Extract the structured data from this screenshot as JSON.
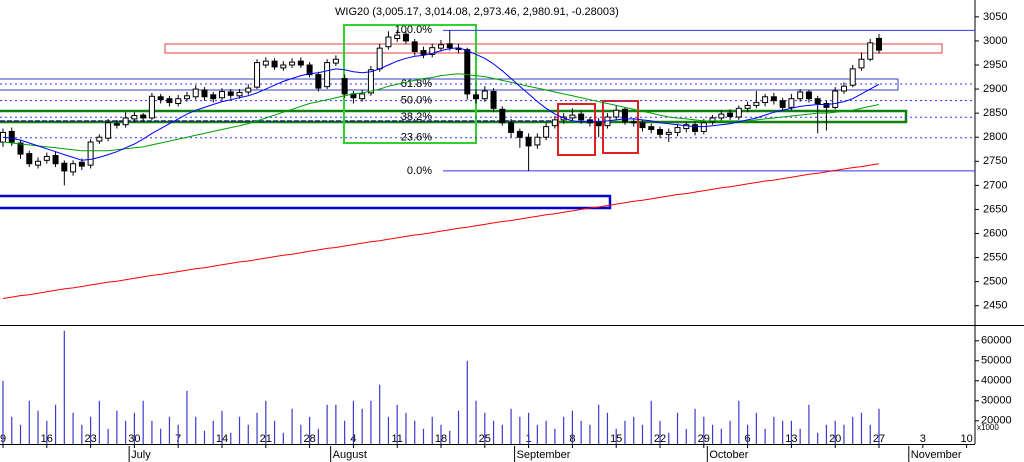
{
  "chart_data": {
    "type": "candlestick",
    "title": "WIG20 (3,005.17, 3,014.08, 2,973.46, 2,980.91, -0.28003)",
    "categories": [
      "9",
      null,
      null,
      null,
      null,
      "16",
      null,
      null,
      null,
      null,
      "23",
      null,
      null,
      null,
      null,
      "30",
      null,
      null,
      null,
      null,
      "7",
      null,
      null,
      null,
      null,
      "14",
      null,
      null,
      null,
      null,
      "21",
      null,
      null,
      null,
      null,
      "28",
      null,
      null,
      null,
      null,
      "4",
      null,
      null,
      null,
      null,
      "11",
      null,
      null,
      null,
      null,
      "18",
      null,
      null,
      null,
      null,
      "25",
      null,
      null,
      null,
      null,
      "1",
      null,
      null,
      null,
      null,
      "8",
      null,
      null,
      null,
      null,
      "15",
      null,
      null,
      null,
      null,
      "22",
      null,
      null,
      null,
      null,
      "29",
      null,
      null,
      null,
      null,
      "6",
      null,
      null,
      null,
      null,
      "13",
      null,
      null,
      null,
      null,
      "20",
      null,
      null,
      null,
      null,
      "27",
      null,
      null,
      null,
      null,
      "3",
      null,
      null,
      null,
      null,
      "10"
    ],
    "months": [
      null,
      null,
      null,
      null,
      null,
      null,
      null,
      null,
      null,
      null,
      null,
      null,
      null,
      null,
      null,
      null,
      "July",
      null,
      null,
      null,
      null,
      null,
      null,
      null,
      null,
      null,
      null,
      null,
      null,
      null,
      null,
      null,
      null,
      null,
      null,
      null,
      null,
      null,
      null,
      "August",
      null,
      null,
      null,
      null,
      null,
      null,
      null,
      null,
      null,
      null,
      null,
      null,
      null,
      null,
      null,
      null,
      null,
      null,
      null,
      null,
      "September",
      null,
      null,
      null,
      null,
      null,
      null,
      null,
      null,
      null,
      null,
      null,
      null,
      null,
      null,
      null,
      null,
      null,
      null,
      null,
      null,
      null,
      "October",
      null,
      null,
      null,
      null,
      null,
      null,
      null,
      null,
      null,
      null,
      null,
      null,
      null,
      null,
      null,
      null,
      null,
      null,
      null,
      null,
      null,
      null,
      "November",
      null,
      null,
      null,
      null,
      null
    ],
    "open": [
      2790,
      2812,
      2788,
      2766,
      2742,
      2752,
      2762,
      2746,
      2728,
      2748,
      2742,
      2792,
      2798,
      2828,
      2826,
      2838,
      2846,
      2840,
      2884,
      2880,
      2870,
      2880,
      2884,
      2898,
      2888,
      2882,
      2894,
      2886,
      2894,
      2904,
      2950,
      2958,
      2944,
      2950,
      2958,
      2950,
      2930,
      2905,
      2954,
      2922,
      2890,
      2880,
      2892,
      2942,
      2988,
      3005,
      3014,
      2998,
      2980,
      2972,
      2985,
      2994,
      2985,
      2982,
      2888,
      2880,
      2895,
      2858,
      2830,
      2812,
      2800,
      2784,
      2800,
      2824,
      2836,
      2840,
      2848,
      2836,
      2832,
      2824,
      2842,
      2858,
      2832,
      2830,
      2822,
      2816,
      2806,
      2810,
      2818,
      2826,
      2812,
      2832,
      2840,
      2850,
      2842,
      2860,
      2866,
      2872,
      2884,
      2876,
      2862,
      2880,
      2894,
      2880,
      2870,
      2862,
      2896,
      2908,
      2944,
      2962,
      3005.17,
      null,
      null,
      null,
      null,
      null,
      null,
      null,
      null,
      null,
      null
    ],
    "high": [
      2818,
      2820,
      2795,
      2772,
      2758,
      2768,
      2770,
      2752,
      2752,
      2756,
      2796,
      2806,
      2838,
      2836,
      2852,
      2852,
      2850,
      2892,
      2890,
      2886,
      2888,
      2894,
      2908,
      2904,
      2894,
      2902,
      2900,
      2900,
      2910,
      2962,
      2966,
      2964,
      2958,
      2964,
      2966,
      2956,
      2936,
      2962,
      2970,
      2930,
      2896,
      2898,
      2948,
      2994,
      3020,
      3022,
      3020,
      3004,
      2988,
      2994,
      3002,
      3022,
      2994,
      2986,
      2900,
      2906,
      2902,
      2864,
      2838,
      2818,
      2808,
      2808,
      2830,
      2844,
      2850,
      2860,
      2854,
      2842,
      2840,
      2850,
      2866,
      2862,
      2840,
      2836,
      2828,
      2822,
      2818,
      2828,
      2832,
      2832,
      2838,
      2846,
      2856,
      2858,
      2866,
      2874,
      2896,
      2890,
      2892,
      2882,
      2890,
      2900,
      2898,
      2886,
      2876,
      2904,
      2914,
      2950,
      2976,
      3004,
      3014.08,
      null,
      null,
      null,
      null,
      null,
      null,
      null,
      null,
      null,
      null
    ],
    "low": [
      2780,
      2782,
      2755,
      2738,
      2735,
      2745,
      2738,
      2700,
      2720,
      2732,
      2735,
      2786,
      2792,
      2818,
      2820,
      2830,
      2832,
      2836,
      2870,
      2864,
      2864,
      2874,
      2878,
      2876,
      2872,
      2876,
      2880,
      2880,
      2888,
      2900,
      2944,
      2940,
      2938,
      2944,
      2944,
      2924,
      2895,
      2900,
      2948,
      2882,
      2870,
      2874,
      2886,
      2936,
      2982,
      2998,
      2994,
      2970,
      2964,
      2966,
      2978,
      2980,
      2974,
      2878,
      2870,
      2874,
      2852,
      2824,
      2800,
      2778,
      2730,
      2776,
      2794,
      2818,
      2828,
      2834,
      2828,
      2822,
      2800,
      2818,
      2836,
      2826,
      2822,
      2812,
      2808,
      2798,
      2790,
      2802,
      2810,
      2804,
      2806,
      2826,
      2834,
      2836,
      2836,
      2852,
      2860,
      2864,
      2868,
      2854,
      2856,
      2874,
      2872,
      2808,
      2814,
      2858,
      2890,
      2904,
      2938,
      2958,
      2973.46,
      null,
      null,
      null,
      null,
      null,
      null,
      null,
      null,
      null,
      null
    ],
    "close": [
      2810,
      2790,
      2765,
      2745,
      2750,
      2760,
      2745,
      2730,
      2745,
      2740,
      2790,
      2800,
      2830,
      2825,
      2840,
      2845,
      2840,
      2885,
      2878,
      2872,
      2880,
      2886,
      2900,
      2884,
      2880,
      2895,
      2887,
      2893,
      2902,
      2955,
      2958,
      2946,
      2950,
      2956,
      2950,
      2930,
      2902,
      2955,
      2962,
      2890,
      2882,
      2890,
      2940,
      2985,
      3008,
      3012,
      3000,
      2978,
      2972,
      2986,
      2992,
      2986,
      2982,
      2890,
      2880,
      2896,
      2860,
      2830,
      2810,
      2800,
      2782,
      2800,
      2822,
      2836,
      2842,
      2846,
      2836,
      2830,
      2824,
      2842,
      2856,
      2832,
      2830,
      2820,
      2816,
      2806,
      2810,
      2820,
      2826,
      2812,
      2830,
      2840,
      2848,
      2843,
      2860,
      2866,
      2872,
      2884,
      2876,
      2862,
      2880,
      2894,
      2880,
      2870,
      2862,
      2896,
      2906,
      2942,
      2962,
      2996,
      2980.91,
      null,
      null,
      null,
      null,
      null,
      null,
      null,
      null,
      null,
      null
    ],
    "up_color": "#ffffff",
    "down_color": "#000000",
    "ylim": [
      2410,
      3085
    ],
    "yticks": [
      2450,
      2500,
      2550,
      2600,
      2650,
      2700,
      2750,
      2800,
      2850,
      2900,
      2950,
      3000,
      3050
    ],
    "lines": [
      {
        "color": "#00a000",
        "values": [
          2790,
          2788,
          2786,
          2784,
          2782,
          2780,
          2778,
          2776,
          2774,
          2772,
          2772,
          2772,
          2772,
          2774,
          2776,
          2778,
          2780,
          2784,
          2788,
          2792,
          2796,
          2800,
          2804,
          2808,
          2812,
          2816,
          2820,
          2824,
          2828,
          2834,
          2840,
          2846,
          2852,
          2858,
          2864,
          2870,
          2874,
          2878,
          2882,
          2886,
          2890,
          2892,
          2896,
          2900,
          2906,
          2910,
          2914,
          2918,
          2922,
          2924,
          2928,
          2930,
          2932,
          2930,
          2928,
          2926,
          2922,
          2918,
          2914,
          2910,
          2906,
          2902,
          2898,
          2894,
          2890,
          2886,
          2882,
          2878,
          2874,
          2870,
          2866,
          2862,
          2858,
          2854,
          2850,
          2846,
          2842,
          2840,
          2838,
          2836,
          2834,
          2834,
          2834,
          2834,
          2834,
          2834,
          2836,
          2838,
          2840,
          2842,
          2844,
          2846,
          2848,
          2850,
          2850,
          2852,
          2854,
          2856,
          2860,
          2864,
          2868,
          null,
          null,
          null,
          null,
          null,
          null,
          null,
          null,
          null,
          null
        ]
      },
      {
        "color": "#ff0000",
        "values": [
          2465,
          2468,
          2471,
          2473,
          2476,
          2479,
          2482,
          2485,
          2487,
          2490,
          2493,
          2496,
          2499,
          2501,
          2504,
          2507,
          2510,
          2513,
          2515,
          2518,
          2521,
          2524,
          2527,
          2529,
          2532,
          2535,
          2538,
          2541,
          2543,
          2546,
          2549,
          2552,
          2555,
          2557,
          2560,
          2563,
          2566,
          2569,
          2571,
          2574,
          2577,
          2580,
          2583,
          2585,
          2588,
          2591,
          2594,
          2597,
          2599,
          2602,
          2605,
          2608,
          2611,
          2613,
          2616,
          2619,
          2622,
          2625,
          2627,
          2630,
          2633,
          2636,
          2639,
          2641,
          2644,
          2647,
          2650,
          2653,
          2655,
          2658,
          2661,
          2664,
          2667,
          2669,
          2672,
          2675,
          2678,
          2681,
          2683,
          2686,
          2689,
          2692,
          2695,
          2697,
          2700,
          2703,
          2706,
          2709,
          2711,
          2714,
          2717,
          2720,
          2723,
          2725,
          2728,
          2731,
          2734,
          2737,
          2739,
          2742,
          2745,
          null,
          null,
          null,
          null,
          null,
          null,
          null,
          null,
          null,
          null
        ]
      },
      {
        "color": "#0000ff",
        "values": [
          2800,
          2798,
          2794,
          2788,
          2782,
          2776,
          2770,
          2764,
          2758,
          2752,
          2754,
          2758,
          2764,
          2770,
          2778,
          2786,
          2796,
          2808,
          2818,
          2828,
          2838,
          2848,
          2856,
          2862,
          2868,
          2874,
          2878,
          2882,
          2886,
          2892,
          2900,
          2908,
          2916,
          2922,
          2928,
          2932,
          2934,
          2938,
          2942,
          2940,
          2936,
          2934,
          2936,
          2942,
          2950,
          2958,
          2964,
          2968,
          2970,
          2974,
          2980,
          2984,
          2986,
          2980,
          2972,
          2964,
          2952,
          2938,
          2922,
          2906,
          2890,
          2874,
          2860,
          2848,
          2840,
          2834,
          2832,
          2832,
          2832,
          2834,
          2836,
          2838,
          2838,
          2836,
          2834,
          2830,
          2828,
          2826,
          2824,
          2822,
          2822,
          2824,
          2826,
          2828,
          2832,
          2836,
          2840,
          2846,
          2852,
          2856,
          2860,
          2864,
          2866,
          2868,
          2868,
          2870,
          2874,
          2880,
          2890,
          2900,
          2910,
          null,
          null,
          null,
          null,
          null,
          null,
          null,
          null,
          null,
          null
        ]
      }
    ],
    "fibonacci": {
      "high": 3022,
      "low": 2730,
      "color": "#3333ff",
      "levels": [
        {
          "value": 100,
          "label": "100.0%"
        },
        {
          "value": 61.8,
          "label": "61.8%"
        },
        {
          "value": 50,
          "label": "50.0%"
        },
        {
          "value": 38.2,
          "label": "38.2%"
        },
        {
          "value": 23.6,
          "label": "23.6%"
        },
        {
          "value": 0,
          "label": "0.0%"
        }
      ]
    },
    "volume": {
      "color": "#3a3ad0",
      "unit_label": "x1000",
      "values": [
        40000,
        22000,
        18000,
        30000,
        25000,
        20000,
        28000,
        65000,
        24000,
        18000,
        22000,
        30000,
        16000,
        25000,
        20000,
        24000,
        30000,
        20000,
        16000,
        22000,
        18000,
        35000,
        22000,
        15000,
        20000,
        25000,
        14000,
        22000,
        18000,
        24000,
        30000,
        20000,
        14000,
        26000,
        18000,
        22000,
        16000,
        28000,
        28000,
        20000,
        30000,
        26000,
        30000,
        38000,
        22000,
        28000,
        24000,
        20000,
        16000,
        22000,
        18000,
        15000,
        25000,
        50000,
        30000,
        24000,
        20000,
        18000,
        26000,
        22000,
        24000,
        18000,
        20000,
        16000,
        22000,
        25000,
        20000,
        18000,
        28000,
        24000,
        16000,
        20000,
        22000,
        18000,
        30000,
        20000,
        14000,
        24000,
        16000,
        26000,
        22000,
        18000,
        16000,
        20000,
        30000,
        18000,
        24000,
        16000,
        22000,
        20000,
        20000,
        16000,
        28000,
        14000,
        18000,
        20000,
        18000,
        22000,
        24000,
        18000,
        26000,
        null,
        null,
        null,
        null,
        null,
        null,
        null,
        null,
        null,
        null
      ],
      "ylim": [
        8400,
        67900
      ],
      "yticks": [
        20000,
        30000,
        40000,
        50000,
        60000
      ]
    }
  }
}
